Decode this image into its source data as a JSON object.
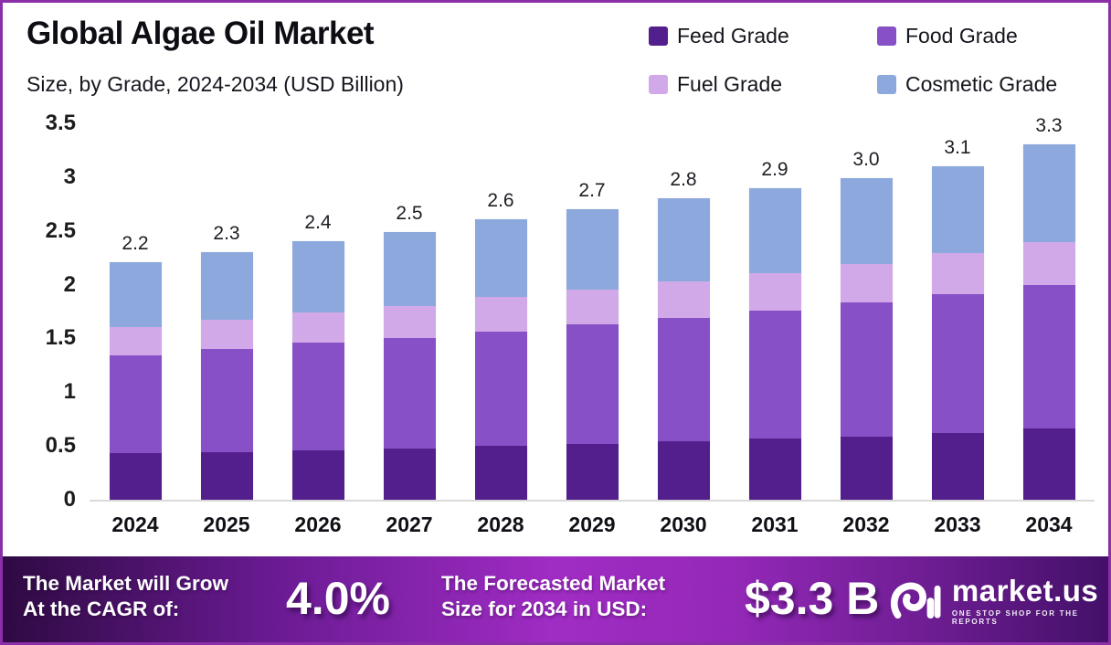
{
  "page": {
    "title": "Global Algae Oil Market",
    "subtitle": "Size, by Grade, 2024-2034 (USD Billion)"
  },
  "legend": [
    {
      "label": "Feed Grade",
      "color": "#521f8c"
    },
    {
      "label": "Food Grade",
      "color": "#8750c6"
    },
    {
      "label": "Fuel Grade",
      "color": "#d2a9e8"
    },
    {
      "label": "Cosmetic Grade",
      "color": "#8da8dc"
    }
  ],
  "chart_data": {
    "type": "bar",
    "stacked": true,
    "title": "Global Algae Oil Market Size, by Grade, 2024-2034 (USD Billion)",
    "xlabel": "",
    "ylabel": "USD Billion",
    "ylim": [
      0,
      3.5
    ],
    "grid": false,
    "legend_position": "top-right",
    "categories": [
      "2024",
      "2025",
      "2026",
      "2027",
      "2028",
      "2029",
      "2030",
      "2031",
      "2032",
      "2033",
      "2034"
    ],
    "series": [
      {
        "name": "Feed Grade",
        "color": "#521f8c",
        "values": [
          0.43,
          0.44,
          0.46,
          0.48,
          0.5,
          0.52,
          0.54,
          0.57,
          0.59,
          0.62,
          0.66
        ]
      },
      {
        "name": "Food Grade",
        "color": "#8750c6",
        "values": [
          0.91,
          0.96,
          1.0,
          1.03,
          1.06,
          1.11,
          1.15,
          1.19,
          1.25,
          1.29,
          1.33
        ]
      },
      {
        "name": "Fuel Grade",
        "color": "#d2a9e8",
        "values": [
          0.26,
          0.27,
          0.28,
          0.3,
          0.32,
          0.32,
          0.34,
          0.35,
          0.36,
          0.38,
          0.4
        ]
      },
      {
        "name": "Cosmetic Grade",
        "color": "#8da8dc",
        "values": [
          0.6,
          0.63,
          0.66,
          0.69,
          0.72,
          0.75,
          0.77,
          0.79,
          0.8,
          0.81,
          0.91
        ]
      }
    ],
    "totals": [
      2.2,
      2.3,
      2.4,
      2.5,
      2.6,
      2.7,
      2.8,
      2.9,
      3.0,
      3.1,
      3.3
    ],
    "total_labels": [
      "2.2",
      "2.3",
      "2.4",
      "2.5",
      "2.6",
      "2.7",
      "2.8",
      "2.9",
      "3.0",
      "3.1",
      "3.3"
    ],
    "ytick_labels": [
      "3.5",
      "3",
      "2.5",
      "2",
      "1.5",
      "1",
      "0.5",
      "0"
    ]
  },
  "banner": {
    "cagr_label_line1": "The Market will Grow",
    "cagr_label_line2": "At the CAGR of:",
    "cagr_value": "4.0%",
    "forecast_label_line1": "The Forecasted Market",
    "forecast_label_line2": "Size for 2034 in USD:",
    "forecast_value": "$3.3 B",
    "brand_name": "market.us",
    "brand_tagline": "ONE STOP SHOP FOR THE REPORTS"
  },
  "colors": {
    "page_border": "#8b2fa8",
    "axis_line": "#dadada",
    "text_dark": "#15151d",
    "banner_gradient_start": "#2e0a42",
    "banner_gradient_mid": "#a02cc4",
    "banner_gradient_end": "#431068"
  }
}
